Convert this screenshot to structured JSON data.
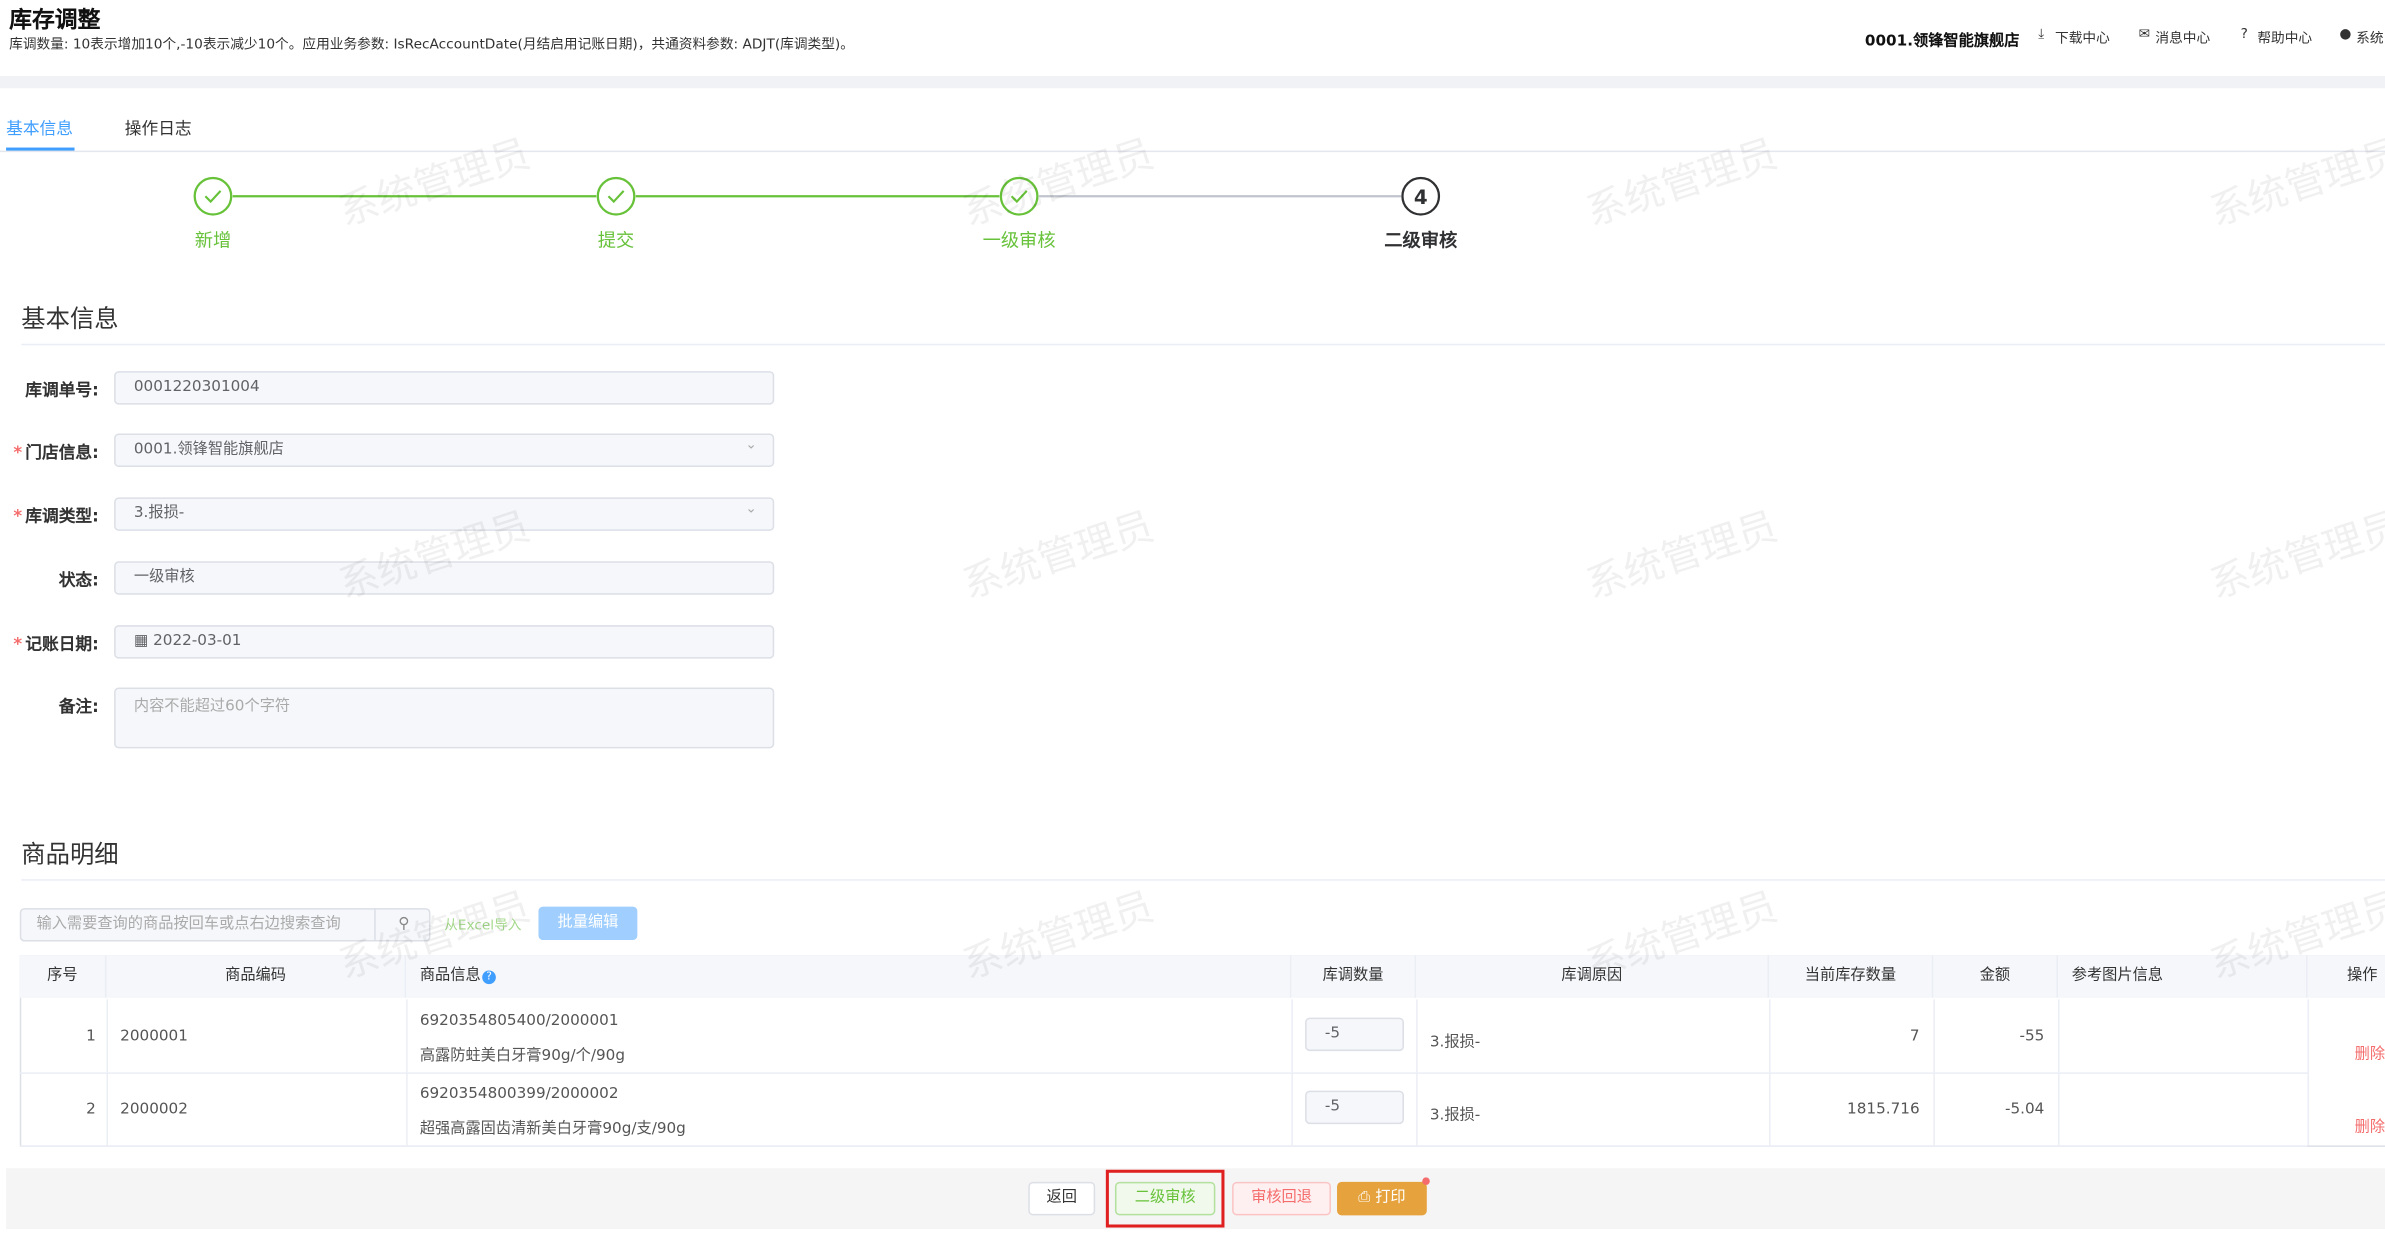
{
  "header": {
    "title": "库存调整",
    "subtitle": "库调数量: 10表示增加10个,-10表示减少10个。应用业务参数: IsRecAccountDate(月结启用记账日期)，共通资料参数: ADJT(库调类型)。",
    "store": "0001.领锋智能旗舰店",
    "nav": [
      "下载中心",
      "消息中心",
      "帮助中心",
      "系统"
    ]
  },
  "tabs": [
    "基本信息",
    "操作日志"
  ],
  "steps": [
    {
      "label": "新增"
    },
    {
      "label": "提交"
    },
    {
      "label": "一级审核"
    },
    {
      "number": "4",
      "label": "二级审核"
    }
  ],
  "sections": [
    "基本信息",
    "商品明细"
  ],
  "form": [
    {
      "label": "库调单号:",
      "value": "0001220301004"
    },
    {
      "label": "门店信息:",
      "value": "0001.领锋智能旗舰店",
      "required": true
    },
    {
      "label": "库调类型:",
      "value": "3.报损-",
      "required": true
    },
    {
      "label": "状态:",
      "value": "一级审核"
    },
    {
      "label": "记账日期:",
      "value": "2022-03-01",
      "required": true
    },
    {
      "label": "备注:",
      "placeholder": "内容不能超过60个字符"
    }
  ],
  "toolbar": {
    "search_placeholder": "输入需要查询的商品按回车或点右边搜索查询",
    "import": "从Excel导入",
    "batch_edit": "批量编辑"
  },
  "table": {
    "headers": [
      "序号",
      "商品编码",
      "商品信息",
      "库调数量",
      "库调原因",
      "当前库存数量",
      "金额",
      "参考图片信息",
      "操作"
    ],
    "rows": [
      {
        "index": 1,
        "code": "2000001",
        "barcode": "6920354805400/2000001",
        "name": "高露防蛀美白牙膏90g/个/90g",
        "qty": -5,
        "reason": "3.报损-",
        "stock": 7,
        "amount": -55,
        "action": "删除"
      },
      {
        "index": 2,
        "code": "2000002",
        "barcode": "6920354800399/2000002",
        "name": "超强高露固齿清新美白牙膏90g/支/90g",
        "qty": -5,
        "reason": "3.报损-",
        "stock": 1815.716,
        "amount": -5.04,
        "action": "删除"
      }
    ]
  },
  "footer": [
    "返回",
    "二级审核",
    "审核回退",
    "打印"
  ],
  "watermark": "系统管理员"
}
